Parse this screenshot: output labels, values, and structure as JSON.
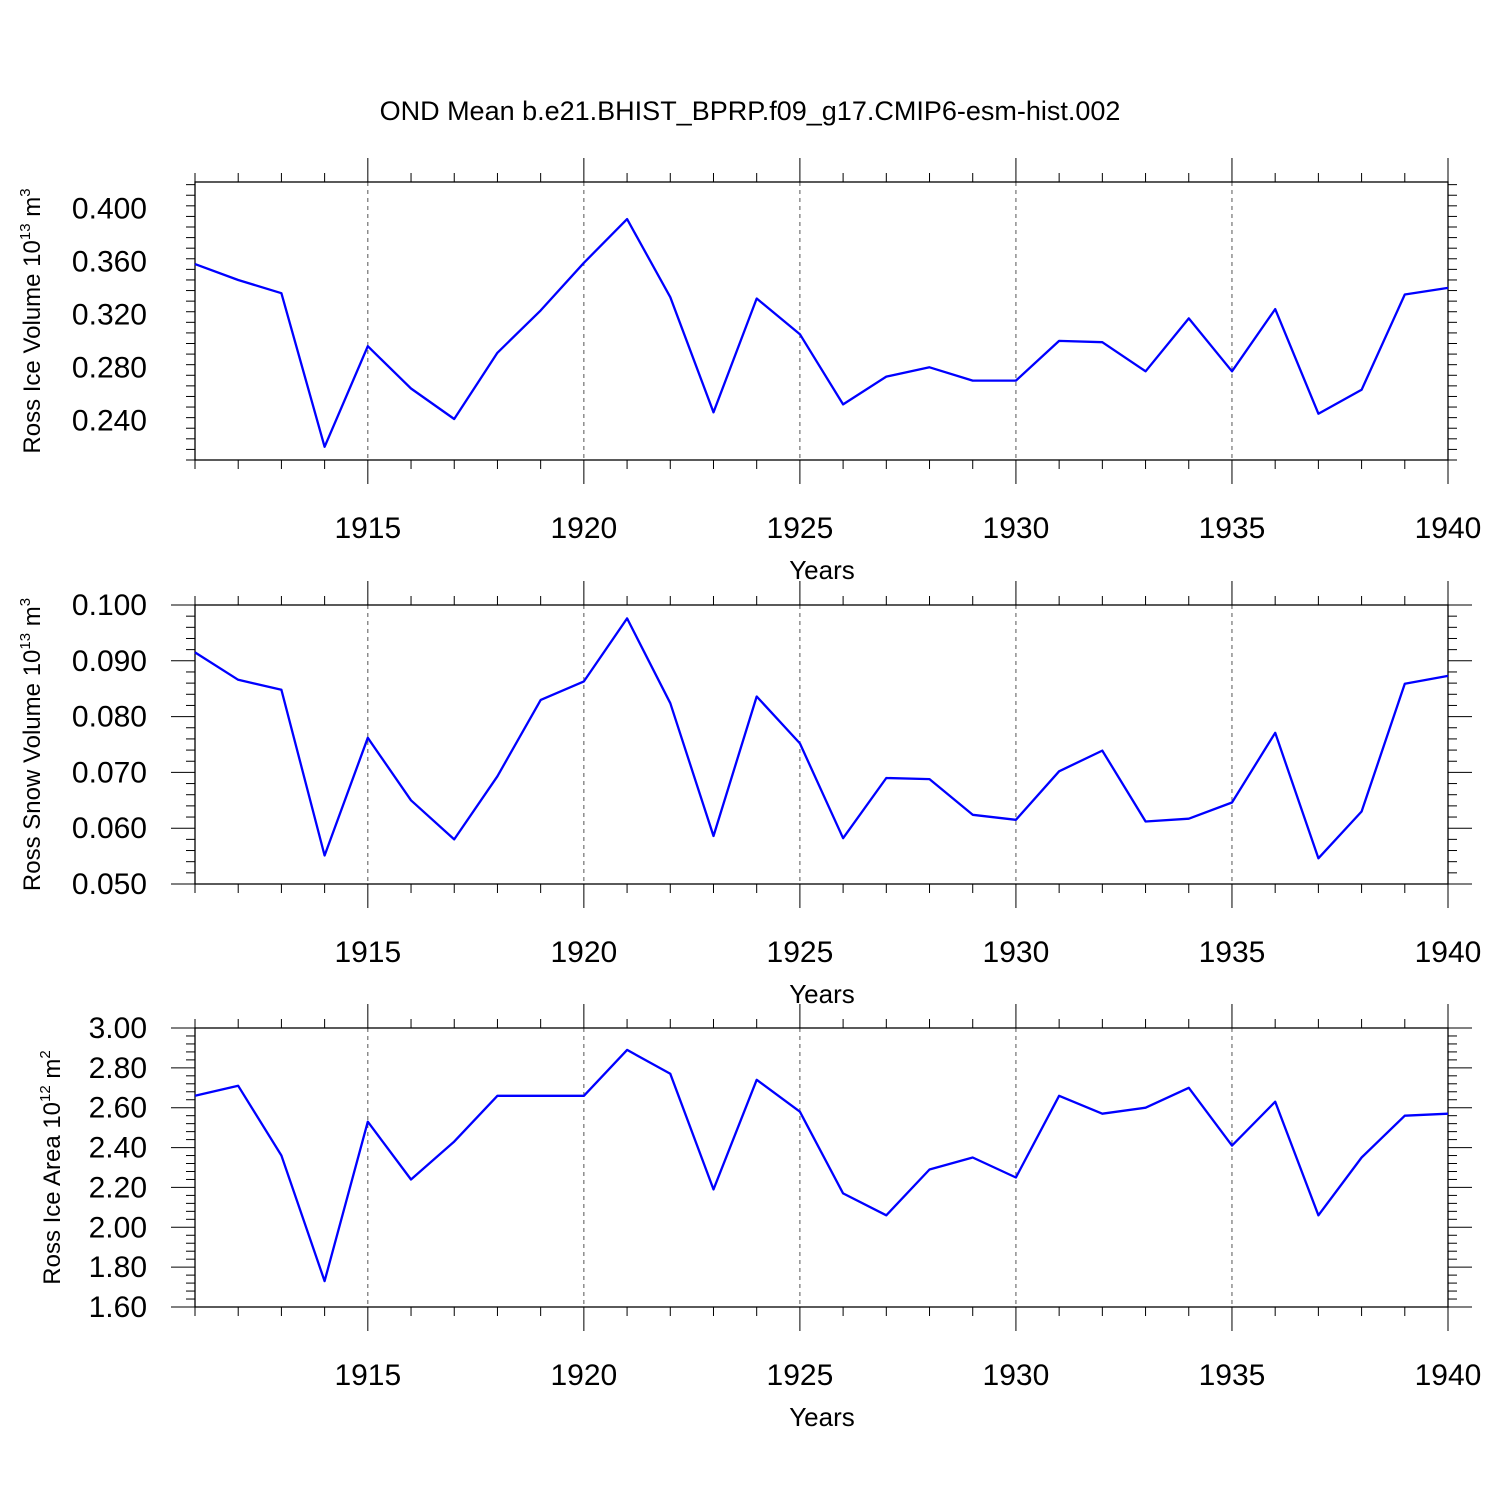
{
  "title": "OND Mean b.e21.BHIST_BPRP.f09_g17.CMIP6-esm-hist.002",
  "colors": {
    "series": "#0000ff",
    "frame": "#000000",
    "grid": "#555555"
  },
  "chart_data": [
    {
      "type": "line",
      "ylabel": {
        "main": "Ross Ice Volume 10",
        "exp": "13",
        "unit": " m",
        "unit_exp": "3"
      },
      "xlabel": "Years",
      "xlim": [
        1911,
        1940
      ],
      "ylim": [
        0.21,
        0.42
      ],
      "x_major_ticks": [
        1915,
        1920,
        1925,
        1930,
        1935,
        1940
      ],
      "x_minor_step": 1,
      "y_major_ticks": [
        0.24,
        0.28,
        0.32,
        0.36,
        0.4
      ],
      "y_tick_labels": [
        "0.240",
        "0.280",
        "0.320",
        "0.360",
        "0.400"
      ],
      "y_minor_step": 0.008,
      "grid": "vertical dashed at major x ticks",
      "x": [
        1911,
        1912,
        1913,
        1914,
        1915,
        1916,
        1917,
        1918,
        1919,
        1920,
        1921,
        1922,
        1923,
        1924,
        1925,
        1926,
        1927,
        1928,
        1929,
        1930,
        1931,
        1932,
        1933,
        1934,
        1935,
        1936,
        1937,
        1938,
        1939,
        1940
      ],
      "values": [
        0.358,
        0.346,
        0.336,
        0.22,
        0.296,
        0.264,
        0.241,
        0.291,
        0.323,
        0.359,
        0.392,
        0.333,
        0.246,
        0.332,
        0.305,
        0.252,
        0.273,
        0.28,
        0.27,
        0.27,
        0.3,
        0.299,
        0.277,
        0.317,
        0.277,
        0.324,
        0.245,
        0.263,
        0.335,
        0.34
      ]
    },
    {
      "type": "line",
      "ylabel": {
        "main": "Ross Snow Volume 10",
        "exp": "13",
        "unit": " m",
        "unit_exp": "3"
      },
      "xlabel": "Years",
      "xlim": [
        1911,
        1940
      ],
      "ylim": [
        0.05,
        0.1
      ],
      "x_major_ticks": [
        1915,
        1920,
        1925,
        1930,
        1935,
        1940
      ],
      "x_minor_step": 1,
      "y_major_ticks": [
        0.05,
        0.06,
        0.07,
        0.08,
        0.09,
        0.1
      ],
      "y_tick_labels": [
        "0.050",
        "0.060",
        "0.070",
        "0.080",
        "0.090",
        "0.100"
      ],
      "y_minor_step": 0.002,
      "grid": "vertical dashed at major x ticks",
      "x": [
        1911,
        1912,
        1913,
        1914,
        1915,
        1916,
        1917,
        1918,
        1919,
        1920,
        1921,
        1922,
        1923,
        1924,
        1925,
        1926,
        1927,
        1928,
        1929,
        1930,
        1931,
        1932,
        1933,
        1934,
        1935,
        1936,
        1937,
        1938,
        1939,
        1940
      ],
      "values": [
        0.0915,
        0.0866,
        0.0848,
        0.0551,
        0.0762,
        0.065,
        0.058,
        0.0693,
        0.083,
        0.0863,
        0.0976,
        0.0824,
        0.0586,
        0.0836,
        0.0752,
        0.0582,
        0.069,
        0.0688,
        0.0624,
        0.0615,
        0.0702,
        0.0739,
        0.0612,
        0.0617,
        0.0646,
        0.0771,
        0.0546,
        0.063,
        0.0859,
        0.0873
      ]
    },
    {
      "type": "line",
      "ylabel": {
        "main": "Ross Ice Area 10",
        "exp": "12",
        "unit": " m",
        "unit_exp": "2"
      },
      "xlabel": "Years",
      "xlim": [
        1911,
        1940
      ],
      "ylim": [
        1.6,
        3.0
      ],
      "x_major_ticks": [
        1915,
        1920,
        1925,
        1930,
        1935,
        1940
      ],
      "x_minor_step": 1,
      "y_major_ticks": [
        1.6,
        1.8,
        2.0,
        2.2,
        2.4,
        2.6,
        2.8,
        3.0
      ],
      "y_tick_labels": [
        "1.60",
        "1.80",
        "2.00",
        "2.20",
        "2.40",
        "2.60",
        "2.80",
        "3.00"
      ],
      "y_minor_step": 0.04,
      "grid": "vertical dashed at major x ticks",
      "x": [
        1911,
        1912,
        1913,
        1914,
        1915,
        1916,
        1917,
        1918,
        1919,
        1920,
        1921,
        1922,
        1923,
        1924,
        1925,
        1926,
        1927,
        1928,
        1929,
        1930,
        1931,
        1932,
        1933,
        1934,
        1935,
        1936,
        1937,
        1938,
        1939,
        1940
      ],
      "values": [
        2.66,
        2.71,
        2.36,
        1.73,
        2.53,
        2.24,
        2.43,
        2.66,
        2.66,
        2.66,
        2.89,
        2.77,
        2.19,
        2.74,
        2.58,
        2.17,
        2.06,
        2.29,
        2.35,
        2.25,
        2.66,
        2.57,
        2.6,
        2.7,
        2.41,
        2.63,
        2.06,
        2.35,
        2.56,
        2.57
      ]
    }
  ]
}
